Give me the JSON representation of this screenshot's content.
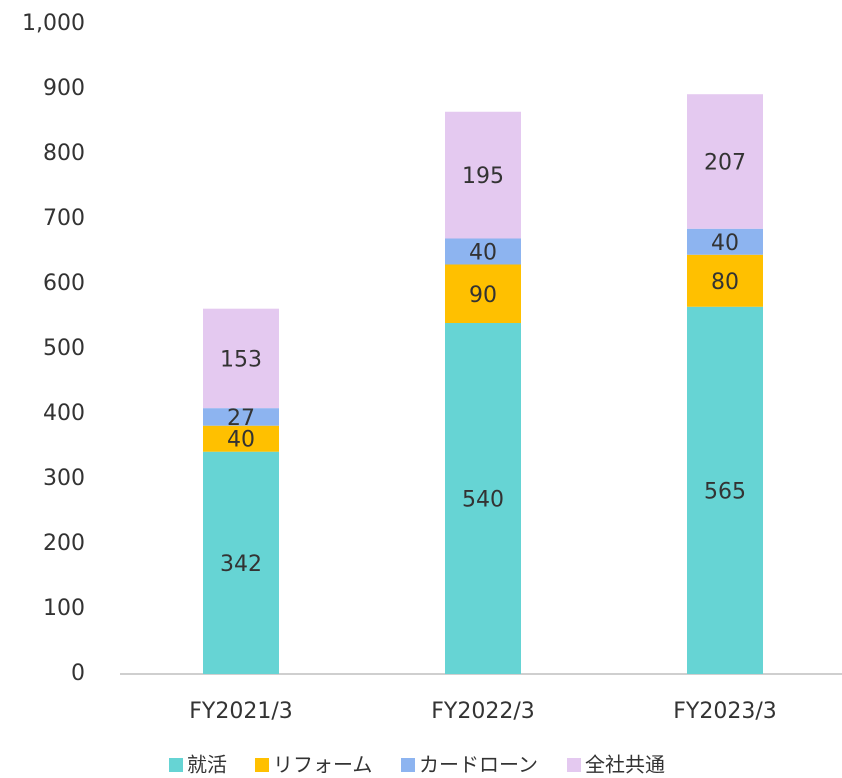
{
  "chart_data": {
    "type": "stacked_bar",
    "categories": [
      "FY2021/3",
      "FY2022/3",
      "FY2023/3"
    ],
    "series": [
      {
        "name": "就活",
        "color": "#66d4d4",
        "values": [
          342,
          540,
          565
        ]
      },
      {
        "name": "リフォーム",
        "color": "#ffc000",
        "values": [
          40,
          90,
          80
        ]
      },
      {
        "name": "カードローン",
        "color": "#8db4f0",
        "values": [
          27,
          40,
          40
        ]
      },
      {
        "name": "全社共通",
        "color": "#e4c9f0",
        "values": [
          153,
          195,
          207
        ]
      }
    ],
    "ylim": [
      0,
      1000
    ],
    "yticks": [
      0,
      100,
      200,
      300,
      400,
      500,
      600,
      700,
      800,
      900,
      {
        "value": 1000,
        "label": "1,000"
      }
    ],
    "grid": false,
    "legend": "bottom"
  }
}
